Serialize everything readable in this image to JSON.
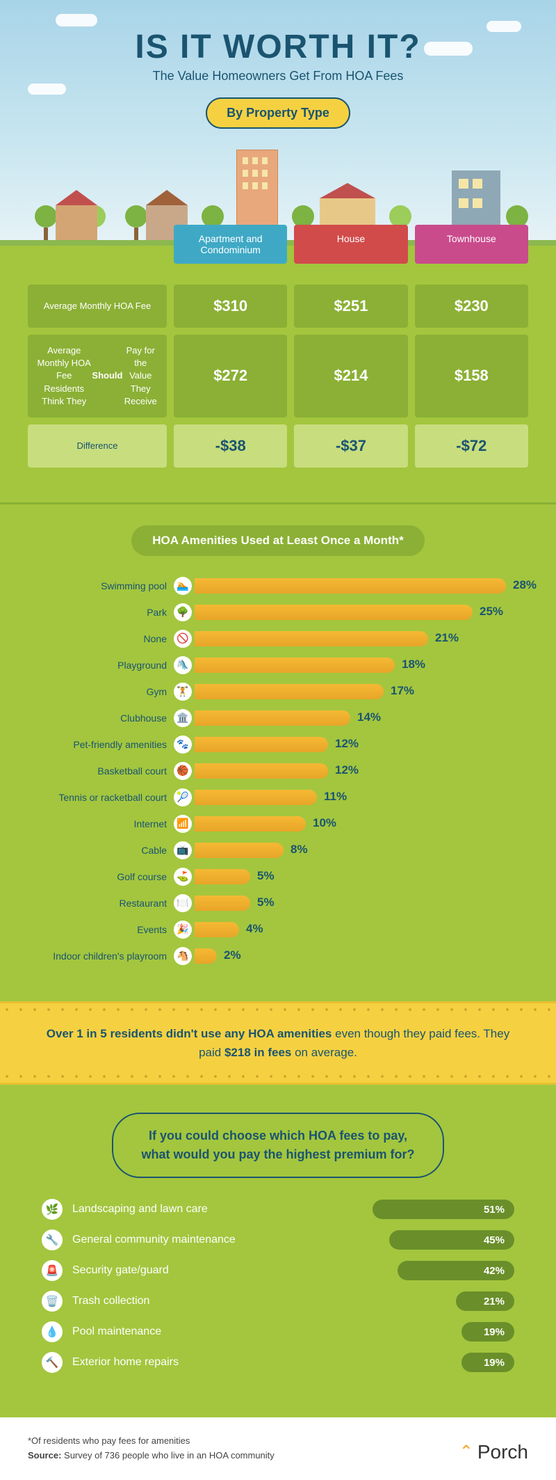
{
  "header": {
    "title": "IS IT WORTH IT?",
    "subtitle": "The Value Homeowners Get From HOA Fees",
    "section_label": "By Property Type"
  },
  "property_table": {
    "headers": [
      {
        "label": "Apartment and Condominium",
        "color": "#3fa9c5",
        "key": "apt"
      },
      {
        "label": "House",
        "color": "#d14b4b",
        "key": "house"
      },
      {
        "label": "Townhouse",
        "color": "#c94b8c",
        "key": "town"
      }
    ],
    "rows": [
      {
        "label": "Average Monthly HOA Fee",
        "style": "normal",
        "apt": "$310",
        "house": "$251",
        "town": "$230"
      },
      {
        "label": "Average Monthly HOA Fee Residents Think They Should Pay for the Value They Receive",
        "style": "normal",
        "apt": "$272",
        "house": "$214",
        "town": "$158"
      },
      {
        "label": "Difference",
        "style": "diff",
        "apt": "-$38",
        "house": "-$37",
        "town": "-$72"
      }
    ]
  },
  "amenities": {
    "title": "HOA Amenities Used at Least Once a Month*",
    "max_percent": 30,
    "bar_color": "#f5b934",
    "value_color": "#1a5470",
    "items": [
      {
        "label": "Swimming pool",
        "icon": "🏊",
        "percent": 28
      },
      {
        "label": "Park",
        "icon": "🌳",
        "percent": 25
      },
      {
        "label": "None",
        "icon": "🚫",
        "percent": 21
      },
      {
        "label": "Playground",
        "icon": "🛝",
        "percent": 18
      },
      {
        "label": "Gym",
        "icon": "🏋️",
        "percent": 17
      },
      {
        "label": "Clubhouse",
        "icon": "🏛️",
        "percent": 14
      },
      {
        "label": "Pet-friendly amenities",
        "icon": "🐾",
        "percent": 12
      },
      {
        "label": "Basketball court",
        "icon": "🏀",
        "percent": 12
      },
      {
        "label": "Tennis or racketball court",
        "icon": "🎾",
        "percent": 11
      },
      {
        "label": "Internet",
        "icon": "📶",
        "percent": 10
      },
      {
        "label": "Cable",
        "icon": "📺",
        "percent": 8
      },
      {
        "label": "Golf course",
        "icon": "⛳",
        "percent": 5
      },
      {
        "label": "Restaurant",
        "icon": "🍽️",
        "percent": 5
      },
      {
        "label": "Events",
        "icon": "🎉",
        "percent": 4
      },
      {
        "label": "Indoor children's playroom",
        "icon": "🐴",
        "percent": 2
      }
    ]
  },
  "callout": {
    "prefix": "Over 1 in 5 residents didn't use any HOA amenities",
    "mid": " even though they paid fees. They paid ",
    "amount": "$218 in fees",
    "suffix": " on average."
  },
  "premium": {
    "title_line1": "If you could choose which HOA fees to pay,",
    "title_line2": "what would you pay the highest premium for?",
    "max_percent": 55,
    "bar_color": "#6a8f2a",
    "items": [
      {
        "label": "Landscaping and lawn care",
        "icon": "🌿",
        "percent": 51
      },
      {
        "label": "General community maintenance",
        "icon": "🔧",
        "percent": 45
      },
      {
        "label": "Security gate/guard",
        "icon": "🚨",
        "percent": 42
      },
      {
        "label": "Trash collection",
        "icon": "🗑️",
        "percent": 21
      },
      {
        "label": "Pool maintenance",
        "icon": "💧",
        "percent": 19
      },
      {
        "label": "Exterior home repairs",
        "icon": "🔨",
        "percent": 19
      }
    ]
  },
  "footer": {
    "note1": "*Of residents who pay fees for amenities",
    "note2_label": "Source:",
    "note2_text": " Survey of 736 people who live in an HOA community",
    "logo_text": "Porch"
  },
  "colors": {
    "sky_top": "#a8d4e8",
    "green_bg": "#a3c63e",
    "green_dark": "#8bb035",
    "green_light": "#c8dd7e",
    "yellow": "#f5d142",
    "navy": "#1a5470",
    "orange_bar": "#f5b934",
    "prem_bar": "#6a8f2a"
  }
}
